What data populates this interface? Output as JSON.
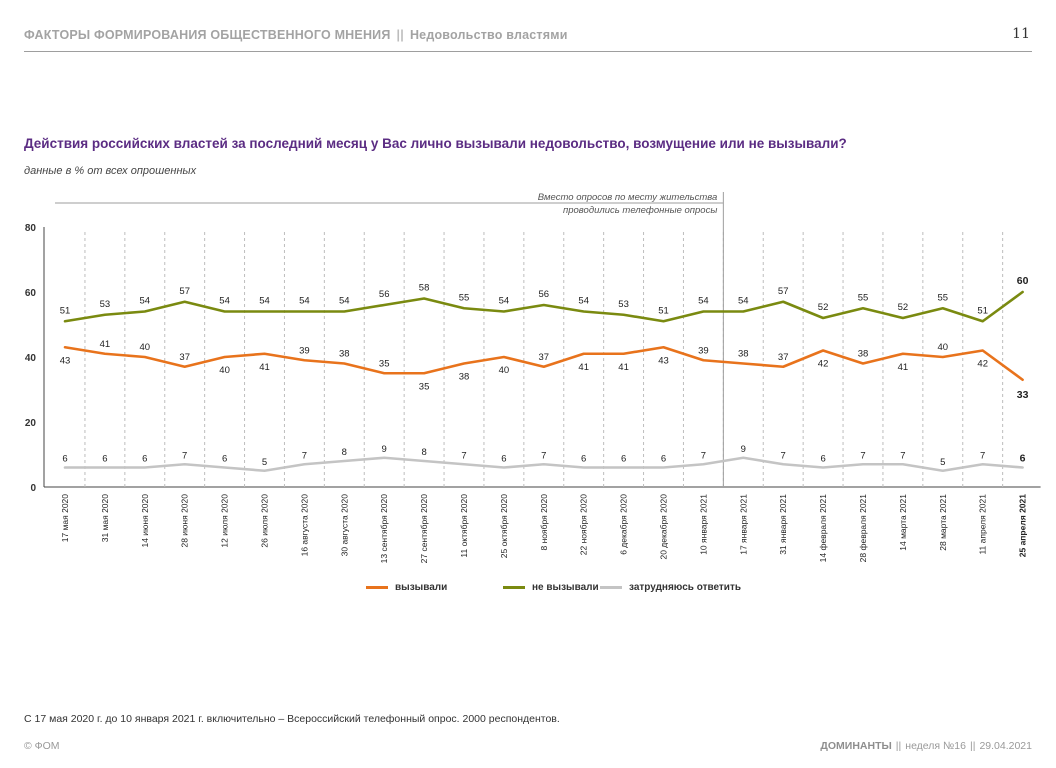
{
  "header": {
    "section": "ФАКТОРЫ ФОРМИРОВАНИЯ ОБЩЕСТВЕННОГО МНЕНИЯ",
    "separator": "||",
    "topic": "Недовольство властями",
    "page_number": "11"
  },
  "question": "Действия российских властей за последний месяц у Вас лично вызывали недовольство, возмущение или не вызывали?",
  "subtitle": "данные в % от всех опрошенных",
  "note": "С 17 мая 2020 г. до 10 января 2021 г. включительно – Всероссийский телефонный опрос. 2000 респондентов.",
  "footer": {
    "copyright": "© ФОМ",
    "brand": "ДОМИНАНТЫ",
    "sep": "||",
    "issue": "неделя №16",
    "date": "29.04.2021"
  },
  "chart_data": {
    "type": "line",
    "categories": [
      "17 мая 2020",
      "31 мая 2020",
      "14 июня 2020",
      "28 июня 2020",
      "12 июля 2020",
      "26 июля 2020",
      "16 августа 2020",
      "30 августа 2020",
      "13 сентября 2020",
      "27 сентября 2020",
      "11 октября 2020",
      "25 октября 2020",
      "8 ноября 2020",
      "22 ноября 2020",
      "6 декабря 2020",
      "20 декабря 2020",
      "10 января 2021",
      "17 января 2021",
      "31 января 2021",
      "14 февраля 2021",
      "28 февраля 2021",
      "14 марта 2021",
      "28 марта 2021",
      "11 апреля 2021",
      "25 апреля 2021"
    ],
    "series": [
      {
        "name": "вызывали",
        "color": "#e8731c",
        "values": [
          43,
          41,
          40,
          37,
          40,
          41,
          39,
          38,
          35,
          35,
          38,
          40,
          37,
          41,
          41,
          43,
          39,
          38,
          37,
          42,
          38,
          41,
          40,
          42,
          33
        ]
      },
      {
        "name": "не вызывали",
        "color": "#7a8a10",
        "values": [
          51,
          53,
          54,
          57,
          54,
          54,
          54,
          54,
          56,
          58,
          55,
          54,
          56,
          54,
          53,
          51,
          54,
          54,
          57,
          52,
          55,
          52,
          55,
          51,
          60
        ]
      },
      {
        "name": "затрудняюсь ответить",
        "color": "#c4c4c4",
        "values": [
          6,
          6,
          6,
          7,
          6,
          5,
          7,
          8,
          9,
          8,
          7,
          6,
          7,
          6,
          6,
          6,
          7,
          9,
          7,
          6,
          7,
          7,
          5,
          7,
          6
        ]
      }
    ],
    "ylim": [
      0,
      80
    ],
    "yticks": [
      0,
      20,
      40,
      60,
      80
    ],
    "grid": "vertical dashed",
    "annotation": "Вместо опросов по месту жительства проводились телефонные опросы",
    "annotation_lines": [
      "Вместо опросов по месту жительства",
      "проводились телефонные опросы"
    ],
    "highlight_last": true,
    "legend_position": "bottom-center"
  }
}
